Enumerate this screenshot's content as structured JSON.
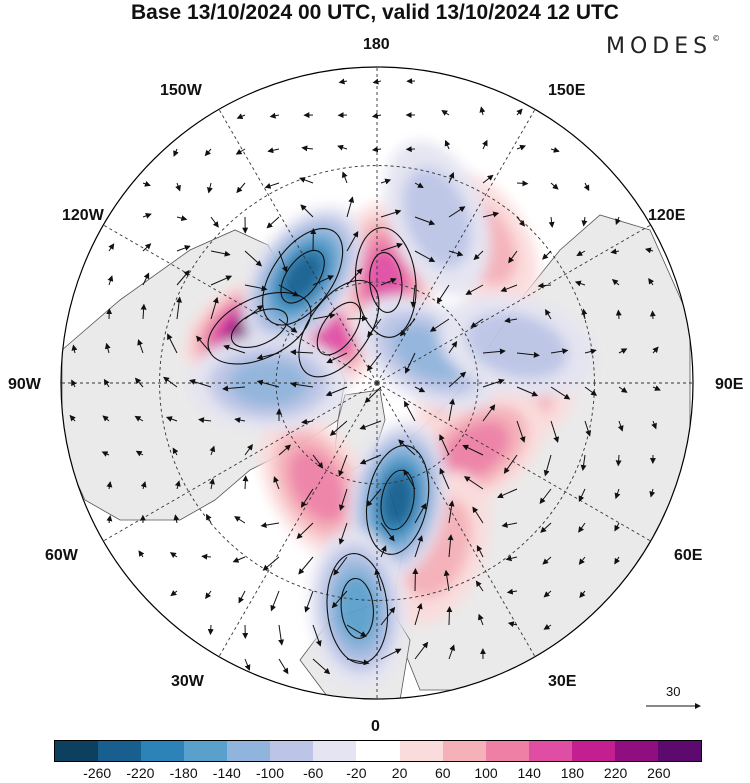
{
  "title": "Base 13/10/2024 00 UTC, valid 13/10/2024 12 UTC",
  "brand": "MODES",
  "brand_mark": "©",
  "longitude_labels": {
    "top": "180",
    "bottom": "0",
    "left": "90W",
    "right": "90E",
    "upper_left_1": "150W",
    "upper_left_2": "120W",
    "lower_left_1": "60W",
    "lower_left_2": "30W",
    "upper_right_1": "150E",
    "upper_right_2": "120E",
    "lower_right_1": "60E",
    "lower_right_2": "30E"
  },
  "reference_vector": "30",
  "colorbar": {
    "ticks": [
      "-260",
      "-220",
      "-180",
      "-140",
      "-100",
      "-60",
      "-20",
      "20",
      "60",
      "100",
      "140",
      "180",
      "220",
      "260"
    ],
    "colors": [
      "#0d3f5f",
      "#185f8f",
      "#2d82b8",
      "#5aa0cc",
      "#90b4dc",
      "#bcc5e6",
      "#e4e4f2",
      "#ffffff",
      "#fbdcdc",
      "#f5b0b8",
      "#ee80a6",
      "#e04ea4",
      "#c41f90",
      "#900e80",
      "#5c0a6e"
    ]
  },
  "anomaly_features": [
    {
      "kind": "positive",
      "level": 260,
      "lon": -115,
      "lat": 52
    },
    {
      "kind": "positive",
      "level": 140,
      "lon": -145,
      "lat": 70
    },
    {
      "kind": "positive",
      "level": 140,
      "lon": 175,
      "lat": 60
    },
    {
      "kind": "positive",
      "level": 100,
      "lon": -30,
      "lat": 55
    },
    {
      "kind": "positive",
      "level": 100,
      "lon": 80,
      "lat": 55
    },
    {
      "kind": "positive",
      "level": 100,
      "lon": 55,
      "lat": 55
    },
    {
      "kind": "positive",
      "level": 60,
      "lon": 20,
      "lat": 40
    },
    {
      "kind": "positive",
      "level": 60,
      "lon": 145,
      "lat": 40
    },
    {
      "kind": "negative",
      "level": -220,
      "lon": -145,
      "lat": 52
    },
    {
      "kind": "negative",
      "level": -220,
      "lon": 10,
      "lat": 55
    },
    {
      "kind": "negative",
      "level": -140,
      "lon": -5,
      "lat": 28
    },
    {
      "kind": "negative",
      "level": -100,
      "lon": -90,
      "lat": 58
    },
    {
      "kind": "negative",
      "level": -100,
      "lon": 120,
      "lat": 72
    },
    {
      "kind": "negative",
      "level": -60,
      "lon": 105,
      "lat": 48
    },
    {
      "kind": "negative",
      "level": -60,
      "lon": 160,
      "lat": 40
    }
  ]
}
